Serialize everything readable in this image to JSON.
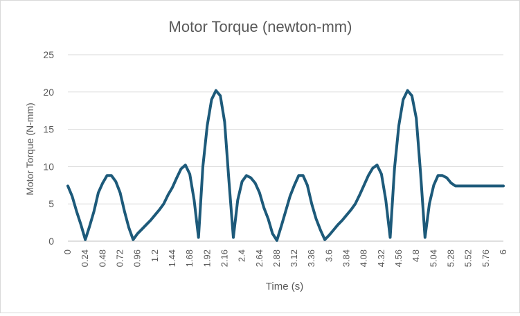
{
  "chart_data": {
    "type": "line",
    "title": "Motor Torque (newton-mm)",
    "xlabel": "Time (s)",
    "ylabel": "Motor Torque (N-mm)",
    "xlim": [
      0,
      6
    ],
    "ylim": [
      0,
      25
    ],
    "yticks": [
      "0",
      "5",
      "10",
      "15",
      "20",
      "25"
    ],
    "xticks": [
      "0",
      "0.24",
      "0.48",
      "0.72",
      "0.96",
      "1.2",
      "1.44",
      "1.68",
      "1.92",
      "2.16",
      "2.4",
      "2.64",
      "2.88",
      "3.12",
      "3.36",
      "3.6",
      "3.84",
      "4.08",
      "4.32",
      "4.56",
      "4.8",
      "5.04",
      "5.28",
      "5.52",
      "5.76",
      "6"
    ],
    "grid": true,
    "line_color": "#1d5a7a",
    "series": [
      {
        "x": [
          0,
          0.06,
          0.12,
          0.18,
          0.24,
          0.3,
          0.36,
          0.42,
          0.48,
          0.54,
          0.6,
          0.66,
          0.72,
          0.78,
          0.84,
          0.9,
          0.96,
          1.02,
          1.08,
          1.14,
          1.2,
          1.26,
          1.32,
          1.38,
          1.44,
          1.5,
          1.56,
          1.62,
          1.68,
          1.74,
          1.8,
          1.86,
          1.92,
          1.98,
          2.04,
          2.1,
          2.16,
          2.22,
          2.28,
          2.34,
          2.4,
          2.46,
          2.52,
          2.58,
          2.64,
          2.7,
          2.76,
          2.82,
          2.88,
          2.94,
          3.0,
          3.06,
          3.12,
          3.18,
          3.24,
          3.3,
          3.36,
          3.42,
          3.48,
          3.54,
          3.6,
          3.66,
          3.72,
          3.78,
          3.84,
          3.9,
          3.96,
          4.02,
          4.08,
          4.14,
          4.2,
          4.26,
          4.32,
          4.38,
          4.44,
          4.5,
          4.56,
          4.62,
          4.68,
          4.74,
          4.8,
          4.86,
          4.92,
          4.98,
          5.04,
          5.1,
          5.16,
          5.22,
          5.28,
          5.34,
          5.4,
          5.46,
          5.52,
          5.58,
          5.64,
          5.7,
          5.76,
          5.82,
          5.88,
          5.94,
          6.0
        ],
        "values": [
          7.4,
          6.0,
          4.0,
          2.2,
          0.2,
          2.0,
          4.0,
          6.5,
          7.8,
          8.8,
          8.8,
          8.0,
          6.5,
          4.0,
          1.8,
          0.2,
          1.0,
          1.6,
          2.2,
          2.8,
          3.5,
          4.2,
          5.0,
          6.2,
          7.2,
          8.5,
          9.7,
          10.2,
          9.0,
          5.5,
          0.5,
          10.0,
          15.5,
          19.0,
          20.2,
          19.5,
          16.0,
          8.0,
          0.5,
          5.5,
          8.0,
          8.8,
          8.5,
          7.8,
          6.5,
          4.5,
          3.0,
          1.0,
          0.1,
          2.0,
          4.0,
          6.0,
          7.5,
          8.8,
          8.8,
          7.5,
          5.0,
          3.0,
          1.5,
          0.2,
          0.8,
          1.5,
          2.2,
          2.8,
          3.5,
          4.2,
          5.0,
          6.2,
          7.5,
          8.8,
          9.8,
          10.2,
          9.0,
          5.5,
          0.5,
          9.8,
          15.5,
          19.0,
          20.2,
          19.5,
          16.5,
          9.0,
          0.5,
          5.0,
          7.5,
          8.8,
          8.8,
          8.5,
          7.8,
          7.4,
          7.4,
          7.4,
          7.4,
          7.4,
          7.4,
          7.4,
          7.4,
          7.4,
          7.4,
          7.4,
          7.4
        ]
      }
    ]
  }
}
